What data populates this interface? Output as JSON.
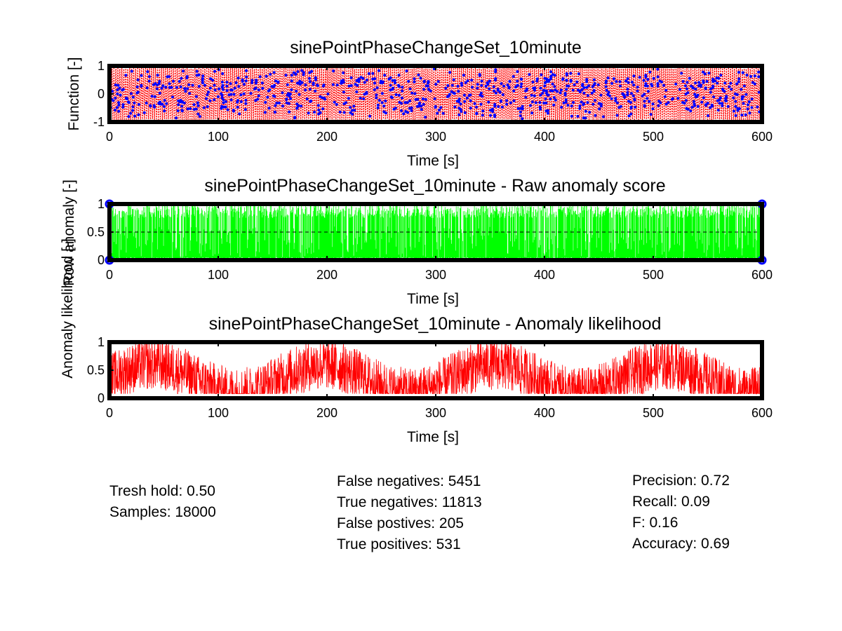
{
  "chart_data": [
    {
      "type": "line",
      "title": "sinePointPhaseChangeSet_10minute",
      "xlabel": "Time [s]",
      "ylabel": "Function [-]",
      "xlim": [
        0,
        600
      ],
      "ylim": [
        -1,
        1
      ],
      "xticks": [
        "0",
        "100",
        "200",
        "300",
        "400",
        "500",
        "600"
      ],
      "yticks": [
        "-1",
        "0",
        "1"
      ],
      "grid": false,
      "series": [
        {
          "color": "#ff0000",
          "style": "dotted line",
          "description": "sine signal oscillating between -1 and 1, ~18000 samples"
        },
        {
          "color": "#0000ff",
          "style": "markers",
          "description": "anomaly samples overlaid on signal"
        }
      ]
    },
    {
      "type": "line",
      "title": "sinePointPhaseChangeSet_10minute - Raw anomaly score",
      "xlabel": "Time [s]",
      "ylabel": "Row anomaly [-]",
      "xlim": [
        0,
        600
      ],
      "ylim": [
        0,
        1
      ],
      "xticks": [
        "0",
        "100",
        "200",
        "300",
        "400",
        "500",
        "600"
      ],
      "yticks": [
        "0",
        "0.5",
        "1"
      ],
      "threshold": 0.5,
      "grid": false,
      "series": [
        {
          "color": "#00ff00",
          "style": "line",
          "description": "raw anomaly score spikes between 0 and 1"
        },
        {
          "color": "#0000ff",
          "style": "markers",
          "description": "labels at 0 and 1"
        }
      ]
    },
    {
      "type": "line",
      "title": "sinePointPhaseChangeSet_10minute - Anomaly likelihood",
      "xlabel": "Time [s]",
      "ylabel": "Anomaly likelihood [-]",
      "xlim": [
        0,
        600
      ],
      "ylim": [
        0,
        1
      ],
      "xticks": [
        "0",
        "100",
        "200",
        "300",
        "400",
        "500",
        "600"
      ],
      "yticks": [
        "0",
        "0.5",
        "1"
      ],
      "grid": false,
      "series": [
        {
          "color": "#ff0000",
          "style": "line",
          "description": "anomaly likelihood fluctuating roughly 0.1 to 1"
        }
      ]
    }
  ],
  "stats": {
    "left": [
      "Tresh hold: 0.50",
      "Samples: 18000"
    ],
    "middle": [
      "False negatives: 5451",
      "True negatives: 11813",
      "False postives: 205",
      "True positives: 531"
    ],
    "right": [
      "Precision: 0.72",
      "Recall: 0.09",
      "F: 0.16",
      "Accuracy: 0.69"
    ]
  }
}
